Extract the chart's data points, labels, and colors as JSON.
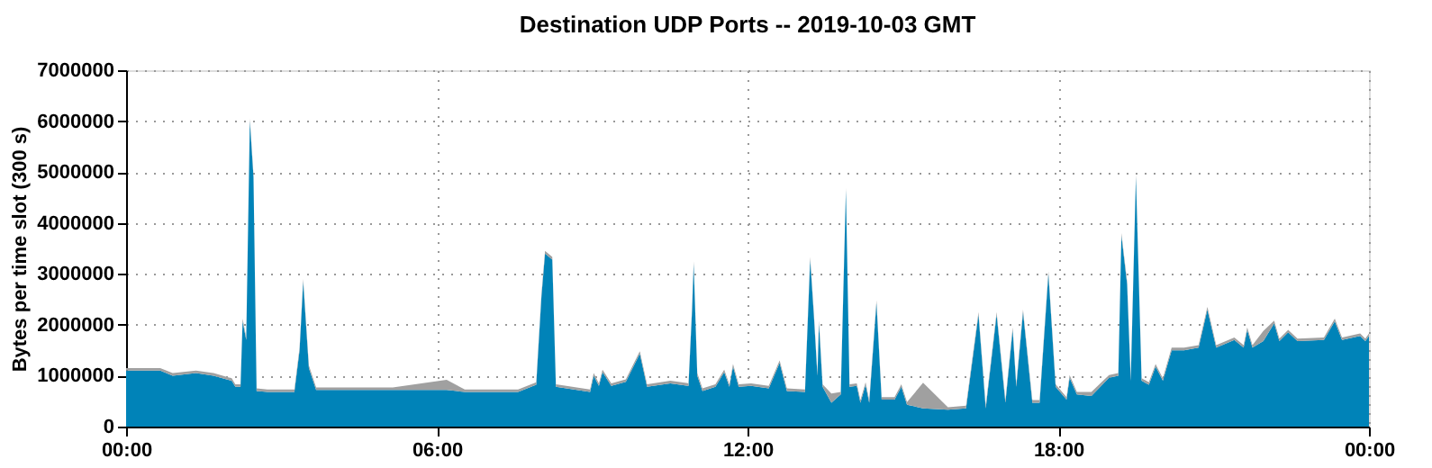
{
  "chart_data": {
    "type": "area",
    "title": "Destination UDP Ports -- 2019-10-03 GMT",
    "ylabel": "Bytes per time slot (300 s)",
    "stacked": true,
    "grid": true,
    "legend": false,
    "x": [
      0,
      0.66,
      0.9,
      1.35,
      1.69,
      2.04,
      2.11,
      2.21,
      2.25,
      2.32,
      2.39,
      2.46,
      2.52,
      2.73,
      3.25,
      3.35,
      3.42,
      3.53,
      3.67,
      4.12,
      5.15,
      6.19,
      6.54,
      7.57,
      7.92,
      8.02,
      8.09,
      8.23,
      8.3,
      8.96,
      9.03,
      9.13,
      9.2,
      9.37,
      9.65,
      9.92,
      10.06,
      10.51,
      10.86,
      10.93,
      10.96,
      11.03,
      11.13,
      11.38,
      11.55,
      11.65,
      11.72,
      11.83,
      12.07,
      12.41,
      12.62,
      12.76,
      13.11,
      13.21,
      13.28,
      13.35,
      13.38,
      13.45,
      13.62,
      13.8,
      13.9,
      13.97,
      14.11,
      14.18,
      14.28,
      14.35,
      14.49,
      14.59,
      14.84,
      14.97,
      15.08,
      15.39,
      15.87,
      16.22,
      16.46,
      16.6,
      16.81,
      16.98,
      17.12,
      17.19,
      17.32,
      17.5,
      17.64,
      17.81,
      17.95,
      18.16,
      18.22,
      18.36,
      18.64,
      18.98,
      19.16,
      19.22,
      19.33,
      19.4,
      19.5,
      19.61,
      19.75,
      19.88,
      20.02,
      20.19,
      20.43,
      20.71,
      20.88,
      21.05,
      21.4,
      21.58,
      21.65,
      21.75,
      21.96,
      22.17,
      22.27,
      22.44,
      22.62,
      23.13,
      23.34,
      23.48,
      23.83,
      23.93,
      24
    ],
    "series": [
      {
        "color": "#0083b8",
        "values": [
          1100000,
          1100000,
          1000000,
          1050000,
          1000000,
          900000,
          780000,
          780000,
          2070000,
          1700000,
          6000000,
          4900000,
          700000,
          680000,
          680000,
          1500000,
          2850000,
          1150000,
          720000,
          720000,
          720000,
          720000,
          680000,
          680000,
          820000,
          2550000,
          3400000,
          3280000,
          780000,
          680000,
          1000000,
          800000,
          1070000,
          800000,
          880000,
          1430000,
          780000,
          850000,
          800000,
          2300000,
          3200000,
          1000000,
          700000,
          780000,
          1070000,
          780000,
          1180000,
          780000,
          800000,
          750000,
          1250000,
          700000,
          680000,
          3280000,
          2200000,
          1000000,
          2030000,
          780000,
          470000,
          630000,
          4640000,
          780000,
          800000,
          470000,
          820000,
          470000,
          2430000,
          530000,
          530000,
          780000,
          430000,
          360000,
          330000,
          360000,
          2200000,
          360000,
          2200000,
          470000,
          1900000,
          780000,
          2250000,
          470000,
          470000,
          3000000,
          780000,
          530000,
          960000,
          630000,
          600000,
          960000,
          1000000,
          3750000,
          2800000,
          900000,
          4900000,
          900000,
          820000,
          1180000,
          900000,
          1500000,
          1500000,
          1550000,
          2300000,
          1550000,
          1700000,
          1550000,
          1900000,
          1550000,
          1680000,
          2030000,
          1680000,
          1850000,
          1680000,
          1700000,
          2070000,
          1700000,
          1780000,
          1680000,
          1780000
        ]
      },
      {
        "color": "#a0a0a0",
        "values": [
          50000,
          50000,
          50000,
          50000,
          50000,
          50000,
          50000,
          50000,
          50000,
          50000,
          50000,
          50000,
          50000,
          50000,
          50000,
          50000,
          50000,
          50000,
          50000,
          50000,
          50000,
          200000,
          50000,
          50000,
          50000,
          50000,
          50000,
          50000,
          50000,
          50000,
          50000,
          50000,
          50000,
          50000,
          50000,
          50000,
          50000,
          50000,
          50000,
          50000,
          50000,
          50000,
          50000,
          50000,
          50000,
          50000,
          50000,
          50000,
          50000,
          50000,
          50000,
          50000,
          50000,
          50000,
          50000,
          50000,
          50000,
          50000,
          180000,
          50000,
          50000,
          50000,
          50000,
          50000,
          50000,
          50000,
          50000,
          50000,
          50000,
          50000,
          50000,
          500000,
          50000,
          50000,
          50000,
          50000,
          50000,
          50000,
          50000,
          50000,
          50000,
          50000,
          50000,
          50000,
          50000,
          50000,
          50000,
          50000,
          80000,
          50000,
          50000,
          50000,
          50000,
          50000,
          50000,
          50000,
          50000,
          50000,
          50000,
          50000,
          50000,
          50000,
          50000,
          50000,
          50000,
          50000,
          50000,
          50000,
          200000,
          50000,
          50000,
          50000,
          50000,
          50000,
          50000,
          50000,
          50000,
          50000,
          50000
        ]
      }
    ],
    "xlim": [
      0,
      24
    ],
    "xticks": [
      {
        "value": 0,
        "label": "00:00"
      },
      {
        "value": 6,
        "label": "06:00"
      },
      {
        "value": 12,
        "label": "12:00"
      },
      {
        "value": 18,
        "label": "18:00"
      },
      {
        "value": 24,
        "label": "00:00"
      }
    ],
    "ylim": [
      0,
      7000000
    ],
    "yticks": [
      0,
      1000000,
      2000000,
      3000000,
      4000000,
      5000000,
      6000000,
      7000000
    ]
  }
}
